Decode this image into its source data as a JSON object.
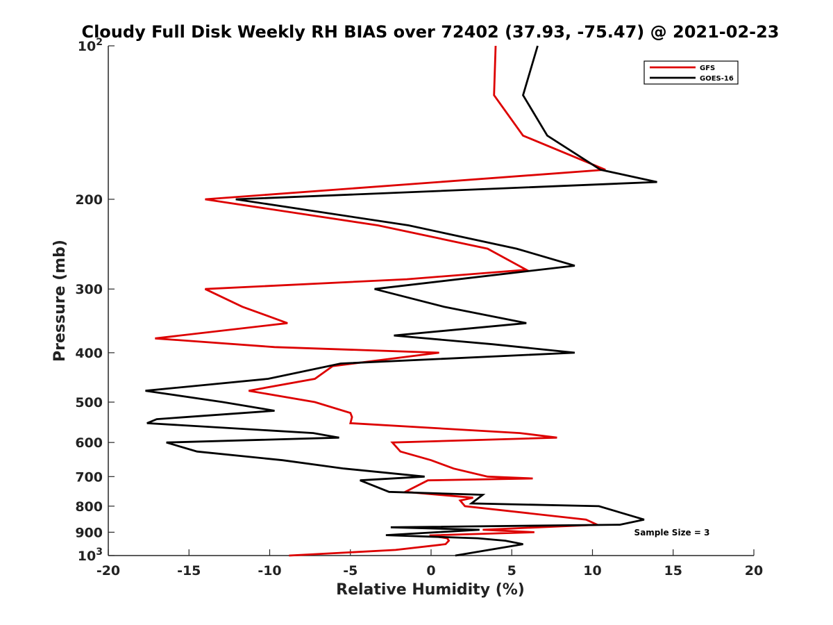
{
  "chart_data": {
    "type": "line",
    "title": "Cloudy Full Disk Weekly RH BIAS over 72402 (37.93, -75.47) @ 2021-02-23",
    "xlabel": "Relative Humidity (%)",
    "ylabel": "Pressure (mb)",
    "xlim": [
      -20,
      20
    ],
    "ylim": [
      100,
      1000
    ],
    "yscale": "log",
    "y_reversed": true,
    "x_ticks": [
      "-20",
      "-15",
      "-10",
      "-5",
      "0",
      "5",
      "10",
      "15",
      "20"
    ],
    "y_ticks": [
      {
        "value": 100,
        "base": "10",
        "exp": "2"
      },
      {
        "value": 200,
        "label": "200"
      },
      {
        "value": 300,
        "label": "300"
      },
      {
        "value": 400,
        "label": "400"
      },
      {
        "value": 500,
        "label": "500"
      },
      {
        "value": 600,
        "label": "600"
      },
      {
        "value": 700,
        "label": "700"
      },
      {
        "value": 800,
        "label": "800"
      },
      {
        "value": 900,
        "label": "900"
      },
      {
        "value": 1000,
        "base": "10",
        "exp": "3"
      }
    ],
    "legend_position": "top-right",
    "grid": false,
    "annotation": "Sample Size = 3",
    "series": [
      {
        "name": "GFS",
        "color": "#dd0000",
        "points": [
          [
            4.0,
            100
          ],
          [
            3.9,
            125
          ],
          [
            5.7,
            150
          ],
          [
            10.8,
            175
          ],
          [
            -14.0,
            200
          ],
          [
            -3.3,
            225
          ],
          [
            3.5,
            250
          ],
          [
            5.9,
            275
          ],
          [
            -1.5,
            287
          ],
          [
            -14.0,
            300
          ],
          [
            -11.7,
            325
          ],
          [
            -8.9,
            350
          ],
          [
            -17.1,
            375
          ],
          [
            -9.7,
            390
          ],
          [
            0.5,
            400
          ],
          [
            -6.1,
            425
          ],
          [
            -7.2,
            450
          ],
          [
            -11.3,
            475
          ],
          [
            -7.2,
            500
          ],
          [
            -5.0,
            525
          ],
          [
            -4.9,
            535
          ],
          [
            -5.0,
            550
          ],
          [
            5.5,
            575
          ],
          [
            7.8,
            587
          ],
          [
            -2.4,
            600
          ],
          [
            -1.9,
            625
          ],
          [
            0.0,
            650
          ],
          [
            1.4,
            675
          ],
          [
            3.5,
            700
          ],
          [
            6.3,
            706
          ],
          [
            -0.2,
            712
          ],
          [
            -1.6,
            750
          ],
          [
            2.6,
            770
          ],
          [
            1.8,
            780
          ],
          [
            2.1,
            800
          ],
          [
            9.6,
            850
          ],
          [
            10.3,
            870
          ],
          [
            3.2,
            890
          ],
          [
            6.4,
            900
          ],
          [
            -0.1,
            913
          ],
          [
            1.0,
            925
          ],
          [
            1.1,
            935
          ],
          [
            0.9,
            950
          ],
          [
            -2.2,
            975
          ],
          [
            -8.8,
            1000
          ]
        ]
      },
      {
        "name": "GOES-16",
        "color": "#000000",
        "points": [
          [
            6.6,
            100
          ],
          [
            5.7,
            125
          ],
          [
            7.2,
            150
          ],
          [
            10.5,
            175
          ],
          [
            14.0,
            185
          ],
          [
            -12.1,
            200
          ],
          [
            -1.4,
            225
          ],
          [
            5.3,
            250
          ],
          [
            8.9,
            270
          ],
          [
            4.6,
            280
          ],
          [
            -3.5,
            300
          ],
          [
            0.8,
            325
          ],
          [
            5.9,
            350
          ],
          [
            -2.3,
            370
          ],
          [
            3.8,
            385
          ],
          [
            8.9,
            400
          ],
          [
            -5.6,
            420
          ],
          [
            -10.1,
            450
          ],
          [
            -17.7,
            475
          ],
          [
            -12.9,
            500
          ],
          [
            -9.7,
            520
          ],
          [
            -17.0,
            540
          ],
          [
            -17.6,
            550
          ],
          [
            -7.3,
            575
          ],
          [
            -5.7,
            587
          ],
          [
            -16.4,
            600
          ],
          [
            -14.5,
            625
          ],
          [
            -9.2,
            650
          ],
          [
            -5.4,
            675
          ],
          [
            -0.4,
            700
          ],
          [
            -4.4,
            712
          ],
          [
            -2.6,
            750
          ],
          [
            3.2,
            760
          ],
          [
            2.5,
            790
          ],
          [
            10.4,
            800
          ],
          [
            13.2,
            850
          ],
          [
            11.7,
            870
          ],
          [
            -2.5,
            880
          ],
          [
            3.0,
            890
          ],
          [
            -2.8,
            912
          ],
          [
            2.9,
            925
          ],
          [
            4.6,
            935
          ],
          [
            5.7,
            950
          ],
          [
            1.5,
            1000
          ]
        ]
      }
    ]
  }
}
